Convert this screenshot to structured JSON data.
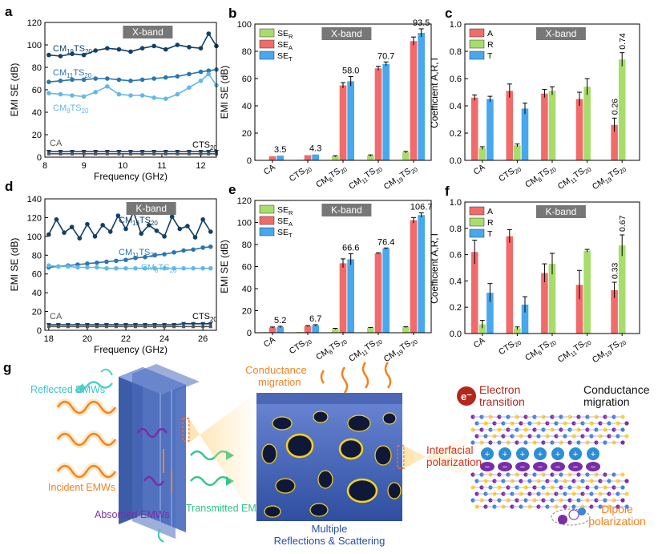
{
  "panel_letters": {
    "a": "a",
    "b": "b",
    "c": "c",
    "d": "d",
    "e": "e",
    "f": "f",
    "g": "g"
  },
  "colors": {
    "red": "#f26b6b",
    "green": "#a8dd6b",
    "blue": "#47a8ee",
    "dark": "#123f66",
    "mid": "#2a76b0",
    "light": "#62b8ea",
    "gray": "#555555",
    "banner": "#777777"
  },
  "chart_data": [
    {
      "id": "a",
      "type": "line",
      "badge": "X-band",
      "xlabel": "Frequency (GHz)",
      "ylabel": "EMI SE (dB)",
      "xlim": [
        8,
        12.4
      ],
      "ylim": [
        0,
        120
      ],
      "xticks": [
        "8",
        "9",
        "10",
        "11",
        "12"
      ],
      "yticks": [
        "0",
        "20",
        "40",
        "60",
        "80",
        "100",
        "120"
      ],
      "series": [
        {
          "label": "CM19TS20",
          "label_main": "CM",
          "label_sub": "19",
          "label_main2": "TS",
          "label_sub2": "20",
          "color": "dark",
          "x": [
            8.1,
            8.4,
            8.7,
            9.0,
            9.3,
            9.6,
            9.9,
            10.2,
            10.5,
            10.8,
            11.1,
            11.4,
            11.7,
            12.0,
            12.2,
            12.4
          ],
          "y": [
            91,
            90,
            92,
            91,
            95,
            97,
            96,
            94,
            97,
            99,
            96,
            100,
            98,
            97,
            110,
            99
          ]
        },
        {
          "label": "CM11TS20",
          "label_main": "CM",
          "label_sub": "11",
          "label_main2": "TS",
          "label_sub2": "20",
          "color": "mid",
          "x": [
            8.1,
            8.4,
            8.7,
            9.0,
            9.3,
            9.6,
            9.9,
            10.2,
            10.5,
            10.8,
            11.1,
            11.4,
            11.7,
            12.0,
            12.2,
            12.4
          ],
          "y": [
            67,
            68,
            69,
            69,
            70,
            70,
            69,
            68,
            69,
            70,
            71,
            72,
            74,
            76,
            77,
            78
          ]
        },
        {
          "label": "CM8TS20",
          "label_main": "CM",
          "label_sub": "8",
          "label_main2": "TS",
          "label_sub2": "20",
          "color": "light",
          "x": [
            8.1,
            8.4,
            8.7,
            9.0,
            9.3,
            9.6,
            9.9,
            10.2,
            10.5,
            10.8,
            11.1,
            11.4,
            11.7,
            12.0,
            12.2,
            12.4
          ],
          "y": [
            57,
            56,
            55,
            54,
            58,
            63,
            56,
            55,
            55,
            53,
            52,
            56,
            62,
            68,
            74,
            64
          ]
        },
        {
          "label": "CTS20",
          "label_main": "CTS",
          "label_sub": "20",
          "label_main2": "",
          "label_sub2": "",
          "color": "dark",
          "x": [
            8.1,
            8.4,
            8.7,
            9.0,
            9.3,
            9.6,
            9.9,
            10.2,
            10.5,
            10.8,
            11.1,
            11.4,
            11.7,
            12.0,
            12.2,
            12.4
          ],
          "y": [
            5,
            5,
            5,
            5,
            5,
            5,
            5,
            5,
            5,
            5,
            5,
            5,
            5,
            5,
            5,
            5
          ]
        },
        {
          "label": "CA",
          "label_main": "CA",
          "label_sub": "",
          "label_main2": "",
          "label_sub2": "",
          "color": "gray",
          "x": [
            8.1,
            8.4,
            8.7,
            9.0,
            9.3,
            9.6,
            9.9,
            10.2,
            10.5,
            10.8,
            11.1,
            11.4,
            11.7,
            12.0,
            12.2,
            12.4
          ],
          "y": [
            3,
            3,
            3,
            3,
            3,
            3,
            3,
            3,
            3,
            3,
            3,
            3,
            3,
            3,
            3,
            3
          ]
        }
      ]
    },
    {
      "id": "b",
      "type": "bar",
      "badge": "X-band",
      "ylabel": "EMI SE (dB)",
      "ylim": [
        0,
        100
      ],
      "yticks": [
        "0",
        "20",
        "40",
        "60",
        "80",
        "100"
      ],
      "categories": [
        {
          "main": "CM",
          "sub": "",
          "main2": "",
          "sub2": "",
          "text": "CA"
        },
        {
          "main": "CTS",
          "sub": "20",
          "main2": "",
          "sub2": "",
          "text": "CTS20"
        },
        {
          "main": "CM",
          "sub": "8",
          "main2": "TS",
          "sub2": "20",
          "text": "CM8TS20"
        },
        {
          "main": "CM",
          "sub": "11",
          "main2": "TS",
          "sub2": "20",
          "text": "CM11TS20"
        },
        {
          "main": "CM",
          "sub": "19",
          "main2": "TS",
          "sub2": "20",
          "text": "CM19TS20"
        }
      ],
      "series": [
        {
          "name": "SE_R",
          "main": "SE",
          "sub": "R",
          "color": "green",
          "values": [
            0.3,
            0.5,
            3,
            3.5,
            6
          ],
          "err": [
            0,
            0,
            0.4,
            0.5,
            0.6
          ]
        },
        {
          "name": "SE_A",
          "main": "SE",
          "sub": "A",
          "color": "red",
          "values": [
            3,
            3.8,
            55,
            67.5,
            87.5
          ],
          "err": [
            0,
            0,
            2,
            1.5,
            3
          ]
        },
        {
          "name": "SE_T",
          "main": "SE",
          "sub": "T",
          "color": "blue",
          "values": [
            3.5,
            4.3,
            58.0,
            70.7,
            93.5
          ],
          "err": [
            0,
            0,
            3.5,
            1.5,
            3
          ]
        }
      ],
      "value_labels": [
        "3.5",
        "4.3",
        "58.0",
        "70.7",
        "93.5"
      ]
    },
    {
      "id": "c",
      "type": "bar",
      "badge": "X-band",
      "ylabel": "Coefficient A,R,T",
      "ylim": [
        0,
        1.0
      ],
      "yticks": [
        "0.0",
        "0.2",
        "0.4",
        "0.6",
        "0.8",
        "1.0"
      ],
      "categories": [
        {
          "main": "CA",
          "sub": "",
          "main2": "",
          "sub2": ""
        },
        {
          "main": "CTS",
          "sub": "20",
          "main2": "",
          "sub2": ""
        },
        {
          "main": "CM",
          "sub": "8",
          "main2": "TS",
          "sub2": "20"
        },
        {
          "main": "CM",
          "sub": "11",
          "main2": "TS",
          "sub2": "20"
        },
        {
          "main": "CM",
          "sub": "19",
          "main2": "TS",
          "sub2": "20"
        }
      ],
      "series": [
        {
          "name": "A",
          "color": "red",
          "values": [
            0.46,
            0.51,
            0.49,
            0.45,
            0.26
          ],
          "err": [
            0.02,
            0.05,
            0.03,
            0.05,
            0.05
          ]
        },
        {
          "name": "R",
          "color": "green",
          "values": [
            0.09,
            0.11,
            0.51,
            0.54,
            0.74
          ],
          "err": [
            0.01,
            0.01,
            0.03,
            0.06,
            0.05
          ]
        },
        {
          "name": "T",
          "color": "blue",
          "values": [
            0.45,
            0.38,
            null,
            null,
            null
          ],
          "err": [
            0.02,
            0.04,
            0,
            0,
            0
          ]
        }
      ],
      "rotated_labels": [
        {
          "text": "0.26",
          "cat": 4,
          "series": 0,
          "value": 0.26
        },
        {
          "text": "0.74",
          "cat": 4,
          "series": 1,
          "value": 0.74
        }
      ]
    },
    {
      "id": "d",
      "type": "line",
      "badge": "K-band",
      "xlabel": "Frequency (GHz)",
      "ylabel": "EMI SE (dB)",
      "xlim": [
        17.8,
        26.7
      ],
      "ylim": [
        0,
        140
      ],
      "xticks": [
        "18",
        "20",
        "22",
        "24",
        "26"
      ],
      "yticks": [
        "0",
        "20",
        "40",
        "60",
        "80",
        "100",
        "120",
        "140"
      ],
      "series": [
        {
          "label": "CM19TS20",
          "label_main": "CM",
          "label_sub": "19",
          "label_main2": "TS",
          "label_sub2": "20",
          "color": "dark",
          "x": [
            18,
            18.4,
            18.8,
            19.2,
            19.6,
            20,
            20.4,
            20.8,
            21.2,
            21.6,
            22,
            22.4,
            22.8,
            23.2,
            23.6,
            24,
            24.4,
            24.8,
            25.2,
            25.6,
            26,
            26.4
          ],
          "y": [
            102,
            118,
            104,
            110,
            98,
            113,
            100,
            112,
            105,
            122,
            108,
            126,
            103,
            112,
            106,
            100,
            121,
            108,
            111,
            99,
            118,
            105
          ]
        },
        {
          "label": "CM11TS20",
          "label_main": "CM",
          "label_sub": "11",
          "label_main2": "TS",
          "label_sub2": "20",
          "color": "mid",
          "x": [
            18,
            18.5,
            19,
            19.5,
            20,
            20.5,
            21,
            21.5,
            22,
            22.5,
            23,
            23.5,
            24,
            24.5,
            25,
            25.5,
            26,
            26.4
          ],
          "y": [
            67,
            68,
            69,
            70,
            71,
            72,
            73,
            74,
            75,
            77,
            78,
            80,
            81,
            83,
            85,
            86,
            88,
            89
          ]
        },
        {
          "label": "CM8TS20",
          "label_main": "CM",
          "label_sub": "8",
          "label_main2": "TS",
          "label_sub2": "20",
          "color": "light",
          "x": [
            18,
            18.5,
            19,
            19.5,
            20,
            20.5,
            21,
            21.5,
            22,
            22.5,
            23,
            23.5,
            24,
            24.5,
            25,
            25.5,
            26,
            26.4
          ],
          "y": [
            69,
            68,
            68,
            67,
            67,
            67,
            66,
            66,
            66,
            66,
            66,
            66,
            66,
            66,
            66,
            66,
            66,
            66
          ]
        },
        {
          "label": "CTS20",
          "label_main": "CTS",
          "label_sub": "20",
          "label_main2": "",
          "label_sub2": "",
          "color": "dark",
          "x": [
            18,
            18.5,
            19,
            19.5,
            20,
            20.5,
            21,
            21.5,
            22,
            22.5,
            23,
            23.5,
            24,
            24.5,
            25,
            25.5,
            26,
            26.4
          ],
          "y": [
            6,
            6,
            6,
            6,
            6,
            6,
            6,
            6,
            6,
            6,
            6,
            6,
            6,
            6,
            7,
            7,
            7,
            7
          ]
        },
        {
          "label": "CA",
          "label_main": "CA",
          "label_sub": "",
          "label_main2": "",
          "label_sub2": "",
          "color": "gray",
          "x": [
            18,
            18.5,
            19,
            19.5,
            20,
            20.5,
            21,
            21.5,
            22,
            22.5,
            23,
            23.5,
            24,
            24.5,
            25,
            25.5,
            26,
            26.4
          ],
          "y": [
            4,
            4,
            4,
            4,
            4,
            4,
            4,
            4,
            4,
            4,
            4,
            4,
            4,
            4,
            4,
            4,
            4,
            4
          ]
        }
      ]
    },
    {
      "id": "e",
      "type": "bar",
      "badge": "K-band",
      "ylabel": "EMI SE (dB)",
      "ylim": [
        0,
        120
      ],
      "yticks": [
        "0",
        "20",
        "40",
        "60",
        "80",
        "100",
        "120"
      ],
      "categories": [
        {
          "main": "CA",
          "sub": "",
          "main2": "",
          "sub2": ""
        },
        {
          "main": "CTS",
          "sub": "20",
          "main2": "",
          "sub2": ""
        },
        {
          "main": "CM",
          "sub": "8",
          "main2": "TS",
          "sub2": "20"
        },
        {
          "main": "CM",
          "sub": "11",
          "main2": "TS",
          "sub2": "20"
        },
        {
          "main": "CM",
          "sub": "19",
          "main2": "TS",
          "sub2": "20"
        }
      ],
      "series": [
        {
          "name": "SE_R",
          "main": "SE",
          "sub": "R",
          "color": "green",
          "values": [
            0.5,
            0.7,
            3.5,
            4.5,
            5
          ],
          "err": [
            0,
            0,
            0.5,
            0.3,
            0.4
          ]
        },
        {
          "name": "SE_A",
          "main": "SE",
          "sub": "A",
          "color": "red",
          "values": [
            4.7,
            6.0,
            63,
            72,
            102
          ],
          "err": [
            0.5,
            0.5,
            4,
            0.5,
            2.5
          ]
        },
        {
          "name": "SE_T",
          "main": "SE",
          "sub": "T",
          "color": "blue",
          "values": [
            5.2,
            6.7,
            66.6,
            76.4,
            106.7
          ],
          "err": [
            0.6,
            0.6,
            5,
            0.5,
            2
          ]
        }
      ],
      "value_labels": [
        "5.2",
        "6.7",
        "66.6",
        "76.4",
        "106.7"
      ]
    },
    {
      "id": "f",
      "type": "bar",
      "badge": "K-band",
      "ylabel": "Coefficient A,R,T",
      "ylim": [
        0,
        1.0
      ],
      "yticks": [
        "0.0",
        "0.2",
        "0.4",
        "0.6",
        "0.8",
        "1.0"
      ],
      "categories": [
        {
          "main": "CA",
          "sub": "",
          "main2": "",
          "sub2": ""
        },
        {
          "main": "CTS",
          "sub": "20",
          "main2": "",
          "sub2": ""
        },
        {
          "main": "CM",
          "sub": "8",
          "main2": "TS",
          "sub2": "20"
        },
        {
          "main": "CM",
          "sub": "11",
          "main2": "TS",
          "sub2": "20"
        },
        {
          "main": "CM",
          "sub": "19",
          "main2": "TS",
          "sub2": "20"
        }
      ],
      "series": [
        {
          "name": "A",
          "color": "red",
          "values": [
            0.62,
            0.74,
            0.46,
            0.37,
            0.33
          ],
          "err": [
            0.09,
            0.05,
            0.07,
            0.11,
            0.06
          ]
        },
        {
          "name": "R",
          "color": "green",
          "values": [
            0.07,
            0.04,
            0.53,
            0.63,
            0.67
          ],
          "err": [
            0.03,
            0.01,
            0.08,
            0.01,
            0.08
          ]
        },
        {
          "name": "T",
          "color": "blue",
          "values": [
            0.31,
            0.22,
            null,
            null,
            null
          ],
          "err": [
            0.07,
            0.06,
            0,
            0,
            0
          ]
        }
      ],
      "rotated_labels": [
        {
          "text": "0.33",
          "cat": 4,
          "series": 0,
          "value": 0.33
        },
        {
          "text": "0.67",
          "cat": 4,
          "series": 1,
          "value": 0.67
        }
      ]
    }
  ],
  "schematic": {
    "reflected": "Reflected EMWs",
    "incident": "Incident EMWs",
    "absorbed": "Absorbed EMWs",
    "transmitted": "Transmitted EMWs",
    "conductance_left": "Conductance migration",
    "multiple": "Multiple Reflections & Scattering",
    "electron_symbol": "e⁻",
    "electron": "Electron transition",
    "conductance_right": "Conductance migration",
    "interfacial": "Interfacial polarization",
    "dipole": "Dipole polarization"
  }
}
